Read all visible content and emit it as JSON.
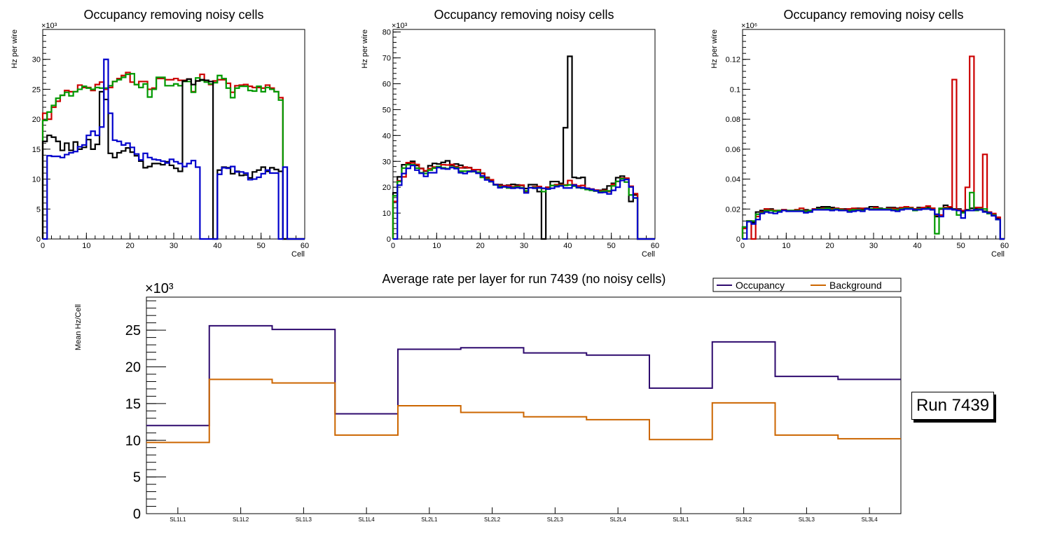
{
  "chart_data": [
    {
      "type": "histogram-step",
      "title": "Occupancy removing noisy cells",
      "xlabel": "Cell",
      "ylabel": "Hz per wire",
      "y_multiplier_label": "×10³",
      "xlim": [
        0,
        60
      ],
      "ylim": [
        0,
        35
      ],
      "xticks": [
        0,
        10,
        20,
        30,
        40,
        50,
        60
      ],
      "yticks": [
        0,
        5,
        10,
        15,
        20,
        25,
        30
      ],
      "series": [
        {
          "name": "red",
          "color": "#cc0000",
          "values": [
            21,
            20,
            22,
            23,
            24,
            24.8,
            24.6,
            24.6,
            25.7,
            25.3,
            25.3,
            24.8,
            25.8,
            26.2,
            25.0,
            25.3,
            26.3,
            26.8,
            27.3,
            27.8,
            26.2,
            25.8,
            26.3,
            26.3,
            25.0,
            25.2,
            26.8,
            26.8,
            26.6,
            26.6,
            26.8,
            26.5,
            26.5,
            26.7,
            24.6,
            26.4,
            27.5,
            26.5,
            25.8,
            26.4,
            26.6,
            26.6,
            26.0,
            24.5,
            25.6,
            25.7,
            25.8,
            25.5,
            25.3,
            25.3,
            25.2,
            25.7,
            25.2,
            24.6,
            23.6,
            0,
            0,
            0,
            0,
            0
          ]
        },
        {
          "name": "green",
          "color": "#009900",
          "values": [
            19.8,
            21.2,
            22.3,
            23.5,
            24.0,
            24.5,
            23.9,
            24.6,
            25.0,
            25.5,
            25.2,
            25.0,
            25.3,
            25.2,
            25.2,
            25.6,
            26.3,
            26.6,
            27.0,
            27.5,
            27.6,
            25.8,
            25.3,
            25.9,
            23.7,
            25.0,
            27.0,
            27.0,
            25.6,
            25.6,
            25.9,
            25.6,
            26.3,
            26.3,
            24.5,
            26.9,
            26.5,
            26.2,
            25.9,
            26.1,
            27.3,
            26.8,
            25.2,
            23.6,
            25.2,
            25.5,
            25.5,
            24.8,
            24.7,
            25.5,
            24.6,
            25.3,
            25.0,
            24.6,
            23.2,
            0,
            0,
            0,
            0,
            0
          ]
        },
        {
          "name": "black",
          "color": "#000000",
          "values": [
            16.3,
            17.3,
            17.0,
            16.3,
            14.8,
            16.0,
            14.8,
            16.2,
            15.0,
            15.3,
            16.6,
            15.0,
            15.8,
            24.6,
            23.3,
            14.3,
            13.6,
            14.4,
            14.7,
            15.2,
            14.5,
            13.9,
            13.0,
            11.9,
            12.1,
            12.6,
            12.6,
            12.4,
            12.9,
            12.3,
            11.8,
            11.3,
            26.4,
            26.7,
            25.8,
            26.4,
            26.6,
            26.5,
            26.3,
            0,
            11.5,
            12.0,
            11.9,
            10.9,
            11.3,
            10.6,
            10.7,
            10.2,
            11.2,
            11.5,
            12.0,
            11.3,
            11.9,
            11.6,
            11.3,
            0,
            0,
            0,
            0,
            0
          ]
        },
        {
          "name": "blue",
          "color": "#0000cc",
          "values": [
            0,
            13.9,
            13.8,
            13.8,
            13.6,
            14.1,
            14.4,
            14.6,
            15.4,
            15.7,
            17.3,
            18.0,
            17.3,
            18.7,
            30.0,
            21.0,
            16.5,
            16.3,
            15.7,
            16.0,
            15.3,
            14.2,
            13.2,
            14.3,
            13.6,
            13.3,
            13.2,
            13.0,
            12.7,
            13.3,
            12.9,
            12.6,
            12.1,
            12.6,
            13.1,
            12.0,
            0,
            0,
            0,
            0,
            10.8,
            11.9,
            11.8,
            12.1,
            11.2,
            11.2,
            11.0,
            9.9,
            10.0,
            10.3,
            10.9,
            11.5,
            11.0,
            11.0,
            0,
            12.0,
            0,
            0,
            0,
            0
          ]
        }
      ]
    },
    {
      "type": "histogram-step",
      "title": "Occupancy removing noisy cells",
      "xlabel": "Cell",
      "ylabel": "Hz per wire",
      "y_multiplier_label": "×10³",
      "xlim": [
        0,
        60
      ],
      "ylim": [
        0,
        81
      ],
      "xticks": [
        0,
        10,
        20,
        30,
        40,
        50,
        60
      ],
      "yticks": [
        0,
        10,
        20,
        30,
        40,
        50,
        60,
        70,
        80
      ],
      "series": [
        {
          "name": "black",
          "color": "#000000",
          "values": [
            17.8,
            24.0,
            28.7,
            29.0,
            30.0,
            28.4,
            27.3,
            26.2,
            28.3,
            29.2,
            29.0,
            29.6,
            30.2,
            28.5,
            29.0,
            28.5,
            27.5,
            27.6,
            26.8,
            26.8,
            25.4,
            23.8,
            22.4,
            21.1,
            21.0,
            20.6,
            20.8,
            21.1,
            20.9,
            20.7,
            19.5,
            21.0,
            21.0,
            18.3,
            0,
            20.0,
            22.2,
            22.2,
            21.5,
            43.0,
            70.6,
            23.8,
            23.5,
            23.8,
            19.5,
            19.0,
            18.5,
            18.8,
            19.2,
            20.5,
            21.5,
            23.7,
            24.3,
            23.2,
            14.5,
            17.0,
            0,
            0,
            0,
            0
          ]
        },
        {
          "name": "red",
          "color": "#cc0000",
          "values": [
            14.5,
            22.5,
            24.0,
            29.5,
            29.4,
            28.8,
            27.2,
            26.4,
            27.2,
            27.8,
            28.0,
            28.7,
            28.6,
            28.8,
            28.0,
            27.5,
            27.8,
            27.5,
            26.8,
            26.8,
            25.3,
            23.6,
            22.9,
            21.1,
            20.7,
            20.6,
            20.6,
            20.2,
            20.5,
            20.8,
            18.2,
            19.8,
            20.2,
            20.3,
            19.5,
            20.0,
            20.7,
            21.0,
            21.0,
            20.9,
            22.6,
            21.0,
            20.5,
            20.7,
            19.6,
            19.3,
            18.9,
            18.6,
            18.8,
            18.3,
            21.1,
            22.2,
            23.5,
            23.5,
            20.4,
            17.5,
            0,
            0,
            0,
            0
          ]
        },
        {
          "name": "green",
          "color": "#009900",
          "values": [
            16.7,
            22.2,
            27.4,
            28.7,
            28.7,
            27.4,
            25.6,
            25.3,
            26.6,
            27.4,
            28.0,
            27.5,
            27.2,
            27.8,
            27.6,
            26.2,
            26.2,
            26.3,
            26.0,
            25.8,
            23.8,
            23.1,
            22.1,
            20.9,
            20.3,
            20.1,
            19.7,
            19.9,
            20.2,
            19.8,
            18.6,
            19.8,
            19.9,
            19.7,
            18.3,
            19.3,
            20.7,
            20.5,
            20.7,
            20.7,
            20.9,
            20.4,
            19.8,
            19.6,
            19.1,
            18.8,
            18.6,
            18.3,
            18.5,
            18.6,
            20.5,
            22.3,
            23.3,
            22.0,
            17.0,
            15.8,
            0,
            0,
            0,
            0
          ]
        },
        {
          "name": "blue",
          "color": "#0000cc",
          "values": [
            0,
            20.8,
            25.3,
            27.3,
            28.4,
            26.6,
            25.4,
            24.2,
            25.6,
            25.6,
            27.6,
            27.2,
            27.0,
            27.6,
            27.2,
            25.6,
            25.3,
            26.0,
            26.2,
            25.4,
            24.4,
            22.8,
            22.2,
            21.0,
            19.8,
            20.2,
            20.0,
            19.6,
            19.8,
            19.6,
            17.8,
            19.8,
            19.6,
            19.8,
            19.6,
            19.3,
            19.6,
            20.2,
            20.5,
            19.7,
            19.7,
            20.8,
            19.9,
            19.8,
            19.5,
            19.2,
            18.7,
            17.9,
            18.0,
            17.4,
            18.8,
            20.0,
            22.6,
            23.0,
            20.1,
            15.9,
            0,
            0,
            0,
            0
          ]
        }
      ]
    },
    {
      "type": "histogram-step",
      "title": "Occupancy removing noisy cells",
      "xlabel": "Cell",
      "ylabel": "Hz per wire",
      "y_multiplier_label": "×10⁶",
      "xlim": [
        0,
        60
      ],
      "ylim": [
        0,
        0.14
      ],
      "xticks": [
        0,
        10,
        20,
        30,
        40,
        50,
        60
      ],
      "yticks": [
        0,
        0.02,
        0.04,
        0.06,
        0.08,
        0.1,
        0.12
      ],
      "ytick_labels": [
        "0",
        "0.02",
        "0.04",
        "0.06",
        "0.08",
        "0.1",
        "0.12"
      ],
      "series": [
        {
          "name": "black",
          "color": "#000000",
          "values": [
            0.008,
            0.012,
            0.011,
            0.018,
            0.019,
            0.02,
            0.02,
            0.019,
            0.019,
            0.0195,
            0.019,
            0.019,
            0.0195,
            0.019,
            0.0195,
            0.019,
            0.02,
            0.021,
            0.0215,
            0.0215,
            0.021,
            0.0205,
            0.02,
            0.02,
            0.02,
            0.02,
            0.0205,
            0.02,
            0.0205,
            0.0215,
            0.0215,
            0.0205,
            0.02,
            0.021,
            0.021,
            0.0205,
            0.021,
            0.021,
            0.021,
            0.02,
            0.021,
            0.021,
            0.021,
            0.0205,
            0.015,
            0.02,
            0.0225,
            0.021,
            0.02,
            0.02,
            0.018,
            0.0195,
            0.0205,
            0.0205,
            0.02,
            0.0185,
            0.017,
            0.016,
            0.014,
            0
          ]
        },
        {
          "name": "red",
          "color": "#cc0000",
          "values": [
            0.007,
            0.012,
            0,
            0.015,
            0.018,
            0.02,
            0.0195,
            0.019,
            0.019,
            0.0195,
            0.019,
            0.019,
            0.0195,
            0.0205,
            0.019,
            0.019,
            0.02,
            0.02,
            0.0205,
            0.0205,
            0.02,
            0.0205,
            0.02,
            0.0195,
            0.02,
            0.0205,
            0.02,
            0.0205,
            0.02,
            0.02,
            0.021,
            0.02,
            0.02,
            0.0205,
            0.0205,
            0.02,
            0.021,
            0.0215,
            0.021,
            0.02,
            0.0205,
            0.021,
            0.022,
            0.0205,
            0.016,
            0.016,
            0.021,
            0.0215,
            0.1065,
            0.0195,
            0.019,
            0.0345,
            0.122,
            0.021,
            0.021,
            0.0565,
            0.018,
            0.017,
            0.0145,
            0
          ]
        },
        {
          "name": "green",
          "color": "#009900",
          "values": [
            0.008,
            0.012,
            0.012,
            0.0165,
            0.0175,
            0.019,
            0.019,
            0.0185,
            0.019,
            0.019,
            0.019,
            0.019,
            0.019,
            0.019,
            0.0185,
            0.019,
            0.0195,
            0.02,
            0.02,
            0.0205,
            0.0195,
            0.02,
            0.0195,
            0.019,
            0.019,
            0.0195,
            0.0195,
            0.019,
            0.02,
            0.02,
            0.02,
            0.02,
            0.02,
            0.02,
            0.0195,
            0.0195,
            0.02,
            0.0205,
            0.0205,
            0.019,
            0.02,
            0.02,
            0.0205,
            0.0195,
            0.0035,
            0.0205,
            0.0205,
            0.02,
            0.0195,
            0.016,
            0.0175,
            0.019,
            0.031,
            0.019,
            0.02,
            0.02,
            0.017,
            0.016,
            0.013,
            0
          ]
        },
        {
          "name": "blue",
          "color": "#0000cc",
          "values": [
            0,
            0.0115,
            0.01,
            0.013,
            0.017,
            0.018,
            0.0175,
            0.017,
            0.018,
            0.019,
            0.0185,
            0.0185,
            0.0185,
            0.0185,
            0.0175,
            0.018,
            0.0195,
            0.0195,
            0.0195,
            0.0195,
            0.019,
            0.0195,
            0.019,
            0.019,
            0.018,
            0.0185,
            0.019,
            0.0185,
            0.02,
            0.0195,
            0.0195,
            0.0195,
            0.0195,
            0.0195,
            0.019,
            0.0185,
            0.0195,
            0.02,
            0.02,
            0.0195,
            0.0195,
            0.02,
            0.02,
            0.0195,
            0.0165,
            0.015,
            0.02,
            0.02,
            0.0195,
            0.019,
            0.014,
            0.019,
            0.019,
            0.0195,
            0.0195,
            0.018,
            0.0175,
            0.0155,
            0.013,
            0
          ]
        }
      ]
    },
    {
      "type": "histogram-step",
      "title": "Average rate per layer for run 7439 (no noisy cells)",
      "xlabel": "",
      "ylabel": "Mean Hz/Cell",
      "y_multiplier_label": "×10³",
      "categories": [
        "SL1L1",
        "SL1L2",
        "SL1L3",
        "SL1L4",
        "SL2L1",
        "SL2L2",
        "SL2L3",
        "SL2L4",
        "SL3L1",
        "SL3L2",
        "SL3L3",
        "SL3L4"
      ],
      "ylim": [
        0,
        29.5
      ],
      "yticks": [
        0,
        5,
        10,
        15,
        20,
        25
      ],
      "legend_position": "top-right",
      "series": [
        {
          "name": "Occupancy",
          "color": "#2e0a6e",
          "values": [
            12.0,
            25.6,
            25.1,
            13.6,
            22.4,
            22.6,
            21.9,
            21.6,
            17.1,
            23.4,
            18.7,
            18.3
          ]
        },
        {
          "name": "Background",
          "color": "#cc6600",
          "values": [
            9.7,
            18.3,
            17.8,
            10.7,
            14.7,
            13.8,
            13.2,
            12.8,
            10.1,
            15.1,
            10.7,
            10.2
          ]
        }
      ]
    }
  ],
  "annotation": {
    "run_label": "Run 7439"
  }
}
